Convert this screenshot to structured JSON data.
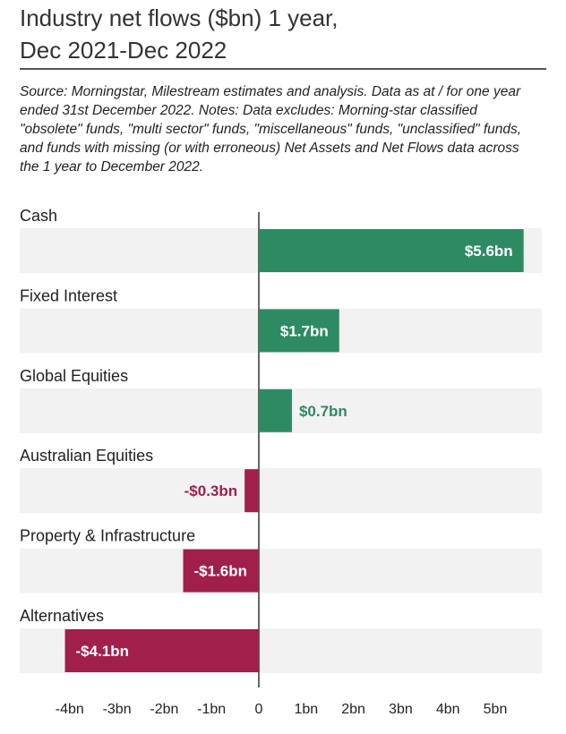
{
  "title_lines": [
    "Industry net flows ($bn) 1 year,",
    "Dec 2021-Dec 2022"
  ],
  "source_note": "Source: Morningstar, Milestream estimates and analysis. Data as at / for one year ended 31st December 2022. Notes: Data excludes: Morning-star classified \"obsolete\" funds, \"multi sector\" funds, \"miscellaneous\" funds, \"unclassified\" funds, and funds with missing (or with erroneous) Net Assets and Net Flows data across the 1 year to December 2022.",
  "colors": {
    "positive": "#2e8a63",
    "negative": "#a11f4b",
    "band": "#f2f2f2",
    "axis": "#333333"
  },
  "chart_data": {
    "type": "bar",
    "orientation": "horizontal",
    "title": "Industry net flows ($bn) 1 year, Dec 2021-Dec 2022",
    "categories": [
      "Cash",
      "Fixed Interest",
      "Global Equities",
      "Australian Equities",
      "Property & Infrastructure",
      "Alternatives"
    ],
    "values": [
      5.6,
      1.7,
      0.7,
      -0.3,
      -1.6,
      -4.1
    ],
    "value_labels": [
      "$5.6bn",
      "$1.7bn",
      "$0.7bn",
      "-$0.3bn",
      "-$1.6bn",
      "-$4.1bn"
    ],
    "xlim": [
      -4.4,
      6.0
    ],
    "xticks": [
      -4,
      -3,
      -2,
      -1,
      0,
      1,
      2,
      3,
      4,
      5
    ],
    "xtick_labels": [
      "-4bn",
      "-3bn",
      "-2bn",
      "-1bn",
      "0",
      "1bn",
      "2bn",
      "3bn",
      "4bn",
      "5bn"
    ],
    "grid": false,
    "legend": "none"
  }
}
